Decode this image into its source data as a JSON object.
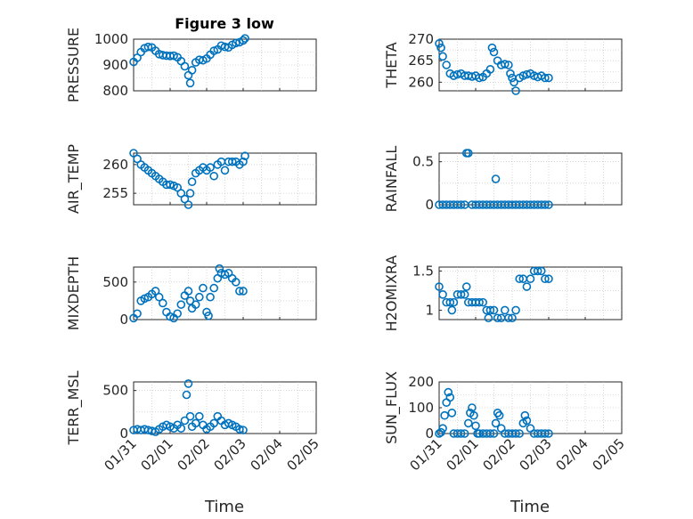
{
  "figure": {
    "title": "Figure 3 low",
    "colors": {
      "marker": "#0072BD",
      "axes": "#262626",
      "grid": "#bdbdbd"
    }
  },
  "chart_data": [
    {
      "id": "pressure",
      "type": "scatter",
      "title": "Figure 3 low",
      "ylabel": "PRESSURE",
      "ylim": [
        800,
        1000
      ],
      "yticks": [
        800,
        900,
        1000
      ],
      "grid": true,
      "xlim": [
        "01/31",
        "02/05"
      ],
      "xticks": [
        "01/31",
        "02/01",
        "02/02",
        "02/03",
        "02/04",
        "02/05"
      ],
      "points": [
        [
          0.0,
          912
        ],
        [
          0.1,
          928
        ],
        [
          0.2,
          950
        ],
        [
          0.3,
          965
        ],
        [
          0.4,
          970
        ],
        [
          0.5,
          968
        ],
        [
          0.6,
          955
        ],
        [
          0.7,
          942
        ],
        [
          0.8,
          938
        ],
        [
          0.9,
          936
        ],
        [
          1.0,
          935
        ],
        [
          1.1,
          936
        ],
        [
          1.2,
          930
        ],
        [
          1.3,
          915
        ],
        [
          1.4,
          895
        ],
        [
          1.5,
          860
        ],
        [
          1.55,
          830
        ],
        [
          1.6,
          880
        ],
        [
          1.7,
          910
        ],
        [
          1.8,
          920
        ],
        [
          1.9,
          918
        ],
        [
          2.0,
          925
        ],
        [
          2.1,
          940
        ],
        [
          2.2,
          955
        ],
        [
          2.3,
          960
        ],
        [
          2.4,
          975
        ],
        [
          2.5,
          970
        ],
        [
          2.6,
          968
        ],
        [
          2.7,
          978
        ],
        [
          2.8,
          985
        ],
        [
          2.9,
          988
        ],
        [
          3.0,
          995
        ],
        [
          3.05,
          1003
        ]
      ]
    },
    {
      "id": "theta",
      "type": "scatter",
      "ylabel": "THETA",
      "ylim": [
        258,
        270
      ],
      "yticks": [
        260,
        265,
        270
      ],
      "grid": true,
      "xlim": [
        "01/31",
        "02/05"
      ],
      "xticks": [
        "01/31",
        "02/01",
        "02/02",
        "02/03",
        "02/04",
        "02/05"
      ],
      "points": [
        [
          0.0,
          269
        ],
        [
          0.05,
          268
        ],
        [
          0.1,
          266
        ],
        [
          0.2,
          264
        ],
        [
          0.3,
          262
        ],
        [
          0.4,
          261.5
        ],
        [
          0.5,
          261.8
        ],
        [
          0.6,
          262
        ],
        [
          0.7,
          261.5
        ],
        [
          0.8,
          261.5
        ],
        [
          0.9,
          261.3
        ],
        [
          1.0,
          261.5
        ],
        [
          1.1,
          261
        ],
        [
          1.2,
          261.2
        ],
        [
          1.3,
          262
        ],
        [
          1.4,
          263
        ],
        [
          1.45,
          268
        ],
        [
          1.5,
          267
        ],
        [
          1.6,
          265
        ],
        [
          1.7,
          264
        ],
        [
          1.8,
          264.2
        ],
        [
          1.9,
          264
        ],
        [
          1.95,
          262
        ],
        [
          2.0,
          261
        ],
        [
          2.05,
          260
        ],
        [
          2.1,
          258
        ],
        [
          2.2,
          261
        ],
        [
          2.3,
          261.5
        ],
        [
          2.4,
          261.8
        ],
        [
          2.5,
          262
        ],
        [
          2.6,
          261.5
        ],
        [
          2.7,
          261.2
        ],
        [
          2.8,
          261.5
        ],
        [
          2.9,
          261
        ],
        [
          3.0,
          261
        ]
      ]
    },
    {
      "id": "air_temp",
      "type": "scatter",
      "ylabel": "AIR_TEMP",
      "ylim": [
        253,
        262
      ],
      "yticks": [
        255,
        260
      ],
      "grid": true,
      "xlim": [
        "01/31",
        "02/05"
      ],
      "xticks": [
        "01/31",
        "02/01",
        "02/02",
        "02/03",
        "02/04",
        "02/05"
      ],
      "points": [
        [
          0.0,
          262
        ],
        [
          0.1,
          261
        ],
        [
          0.2,
          260
        ],
        [
          0.3,
          259.5
        ],
        [
          0.4,
          259
        ],
        [
          0.5,
          258.5
        ],
        [
          0.6,
          258
        ],
        [
          0.7,
          257.5
        ],
        [
          0.8,
          257
        ],
        [
          0.9,
          256.5
        ],
        [
          1.0,
          256.5
        ],
        [
          1.1,
          256.3
        ],
        [
          1.2,
          256
        ],
        [
          1.3,
          255
        ],
        [
          1.4,
          254
        ],
        [
          1.5,
          253
        ],
        [
          1.55,
          255
        ],
        [
          1.6,
          257
        ],
        [
          1.7,
          258.5
        ],
        [
          1.8,
          259
        ],
        [
          1.9,
          259.5
        ],
        [
          2.0,
          259
        ],
        [
          2.1,
          259.5
        ],
        [
          2.2,
          258
        ],
        [
          2.3,
          260
        ],
        [
          2.4,
          260.5
        ],
        [
          2.5,
          259
        ],
        [
          2.6,
          260.5
        ],
        [
          2.7,
          260.5
        ],
        [
          2.8,
          260.5
        ],
        [
          2.9,
          260
        ],
        [
          3.0,
          260.5
        ],
        [
          3.05,
          261.5
        ]
      ]
    },
    {
      "id": "rainfall",
      "type": "scatter",
      "ylabel": "RAINFALL",
      "ylim": [
        0,
        0.6
      ],
      "yticks": [
        0,
        0.5
      ],
      "grid": true,
      "xlim": [
        "01/31",
        "02/05"
      ],
      "xticks": [
        "01/31",
        "02/01",
        "02/02",
        "02/03",
        "02/04",
        "02/05"
      ],
      "points": [
        [
          0.0,
          0
        ],
        [
          0.1,
          0
        ],
        [
          0.2,
          0
        ],
        [
          0.3,
          0
        ],
        [
          0.4,
          0
        ],
        [
          0.5,
          0
        ],
        [
          0.6,
          0
        ],
        [
          0.7,
          0
        ],
        [
          0.75,
          0.6
        ],
        [
          0.8,
          0.6
        ],
        [
          0.9,
          0
        ],
        [
          1.0,
          0
        ],
        [
          1.1,
          0
        ],
        [
          1.2,
          0
        ],
        [
          1.3,
          0
        ],
        [
          1.4,
          0
        ],
        [
          1.5,
          0
        ],
        [
          1.55,
          0.3
        ],
        [
          1.6,
          0
        ],
        [
          1.7,
          0
        ],
        [
          1.8,
          0
        ],
        [
          1.9,
          0
        ],
        [
          2.0,
          0
        ],
        [
          2.1,
          0
        ],
        [
          2.2,
          0
        ],
        [
          2.3,
          0
        ],
        [
          2.4,
          0
        ],
        [
          2.5,
          0
        ],
        [
          2.6,
          0
        ],
        [
          2.7,
          0
        ],
        [
          2.8,
          0
        ],
        [
          2.9,
          0
        ],
        [
          3.0,
          0
        ]
      ]
    },
    {
      "id": "mixdepth",
      "type": "scatter",
      "ylabel": "MIXDEPTH",
      "ylim": [
        0,
        700
      ],
      "yticks": [
        0,
        500
      ],
      "grid": true,
      "xlim": [
        "01/31",
        "02/05"
      ],
      "xticks": [
        "01/31",
        "02/01",
        "02/02",
        "02/03",
        "02/04",
        "02/05"
      ],
      "points": [
        [
          0.0,
          20
        ],
        [
          0.1,
          80
        ],
        [
          0.2,
          250
        ],
        [
          0.3,
          280
        ],
        [
          0.4,
          300
        ],
        [
          0.5,
          340
        ],
        [
          0.6,
          380
        ],
        [
          0.7,
          300
        ],
        [
          0.8,
          220
        ],
        [
          0.9,
          100
        ],
        [
          1.0,
          40
        ],
        [
          1.1,
          20
        ],
        [
          1.2,
          80
        ],
        [
          1.3,
          200
        ],
        [
          1.4,
          320
        ],
        [
          1.5,
          380
        ],
        [
          1.55,
          250
        ],
        [
          1.6,
          150
        ],
        [
          1.7,
          200
        ],
        [
          1.8,
          300
        ],
        [
          1.9,
          420
        ],
        [
          2.0,
          100
        ],
        [
          2.05,
          50
        ],
        [
          2.1,
          300
        ],
        [
          2.2,
          420
        ],
        [
          2.3,
          550
        ],
        [
          2.35,
          680
        ],
        [
          2.4,
          620
        ],
        [
          2.5,
          600
        ],
        [
          2.6,
          620
        ],
        [
          2.7,
          550
        ],
        [
          2.8,
          500
        ],
        [
          2.9,
          380
        ],
        [
          3.0,
          380
        ]
      ]
    },
    {
      "id": "h2omixra",
      "type": "scatter",
      "ylabel": "H2OMIXRA",
      "ylim": [
        0.88,
        1.55
      ],
      "yticks": [
        1,
        1.5
      ],
      "grid": true,
      "xlim": [
        "01/31",
        "02/05"
      ],
      "xticks": [
        "01/31",
        "02/01",
        "02/02",
        "02/03",
        "02/04",
        "02/05"
      ],
      "points": [
        [
          0.0,
          1.3
        ],
        [
          0.1,
          1.2
        ],
        [
          0.2,
          1.1
        ],
        [
          0.3,
          1.1
        ],
        [
          0.35,
          1.0
        ],
        [
          0.4,
          1.1
        ],
        [
          0.5,
          1.2
        ],
        [
          0.6,
          1.2
        ],
        [
          0.7,
          1.2
        ],
        [
          0.75,
          1.3
        ],
        [
          0.8,
          1.1
        ],
        [
          0.9,
          1.1
        ],
        [
          1.0,
          1.1
        ],
        [
          1.1,
          1.1
        ],
        [
          1.2,
          1.1
        ],
        [
          1.3,
          1.0
        ],
        [
          1.35,
          0.9
        ],
        [
          1.4,
          1.0
        ],
        [
          1.5,
          1.0
        ],
        [
          1.6,
          0.9
        ],
        [
          1.7,
          0.9
        ],
        [
          1.8,
          1.0
        ],
        [
          1.9,
          0.9
        ],
        [
          2.0,
          0.9
        ],
        [
          2.1,
          1.0
        ],
        [
          2.2,
          1.4
        ],
        [
          2.3,
          1.4
        ],
        [
          2.4,
          1.3
        ],
        [
          2.5,
          1.4
        ],
        [
          2.6,
          1.5
        ],
        [
          2.7,
          1.5
        ],
        [
          2.8,
          1.5
        ],
        [
          2.9,
          1.4
        ],
        [
          3.0,
          1.4
        ]
      ]
    },
    {
      "id": "terr_msl",
      "type": "scatter",
      "ylabel": "TERR_MSL",
      "ylim": [
        0,
        600
      ],
      "yticks": [
        0,
        500
      ],
      "grid": true,
      "xlim": [
        "01/31",
        "02/05"
      ],
      "xticks": [
        "01/31",
        "02/01",
        "02/02",
        "02/03",
        "02/04",
        "02/05"
      ],
      "points": [
        [
          0.0,
          40
        ],
        [
          0.1,
          50
        ],
        [
          0.2,
          40
        ],
        [
          0.3,
          50
        ],
        [
          0.4,
          40
        ],
        [
          0.5,
          30
        ],
        [
          0.6,
          20
        ],
        [
          0.7,
          50
        ],
        [
          0.8,
          80
        ],
        [
          0.9,
          100
        ],
        [
          1.0,
          80
        ],
        [
          1.1,
          60
        ],
        [
          1.2,
          100
        ],
        [
          1.3,
          60
        ],
        [
          1.4,
          150
        ],
        [
          1.45,
          450
        ],
        [
          1.5,
          580
        ],
        [
          1.55,
          200
        ],
        [
          1.6,
          80
        ],
        [
          1.7,
          120
        ],
        [
          1.8,
          200
        ],
        [
          1.9,
          100
        ],
        [
          2.0,
          50
        ],
        [
          2.1,
          80
        ],
        [
          2.2,
          120
        ],
        [
          2.3,
          200
        ],
        [
          2.4,
          150
        ],
        [
          2.5,
          100
        ],
        [
          2.6,
          120
        ],
        [
          2.7,
          100
        ],
        [
          2.8,
          80
        ],
        [
          2.9,
          50
        ],
        [
          3.0,
          40
        ]
      ]
    },
    {
      "id": "sun_flux",
      "type": "scatter",
      "ylabel": "SUN_FLUX",
      "ylim": [
        0,
        200
      ],
      "yticks": [
        0,
        100,
        200
      ],
      "grid": true,
      "xlim": [
        "01/31",
        "02/05"
      ],
      "xticks": [
        "01/31",
        "02/01",
        "02/02",
        "02/03",
        "02/04",
        "02/05"
      ],
      "points": [
        [
          0.0,
          0
        ],
        [
          0.05,
          5
        ],
        [
          0.1,
          20
        ],
        [
          0.15,
          70
        ],
        [
          0.2,
          120
        ],
        [
          0.25,
          160
        ],
        [
          0.3,
          140
        ],
        [
          0.35,
          80
        ],
        [
          0.4,
          0
        ],
        [
          0.5,
          0
        ],
        [
          0.6,
          0
        ],
        [
          0.7,
          0
        ],
        [
          0.8,
          40
        ],
        [
          0.85,
          80
        ],
        [
          0.9,
          100
        ],
        [
          0.95,
          70
        ],
        [
          1.0,
          30
        ],
        [
          1.05,
          0
        ],
        [
          1.1,
          0
        ],
        [
          1.2,
          0
        ],
        [
          1.3,
          0
        ],
        [
          1.4,
          0
        ],
        [
          1.5,
          0
        ],
        [
          1.55,
          40
        ],
        [
          1.6,
          80
        ],
        [
          1.65,
          70
        ],
        [
          1.7,
          20
        ],
        [
          1.8,
          0
        ],
        [
          1.9,
          0
        ],
        [
          2.0,
          0
        ],
        [
          2.1,
          0
        ],
        [
          2.2,
          0
        ],
        [
          2.3,
          40
        ],
        [
          2.35,
          70
        ],
        [
          2.4,
          50
        ],
        [
          2.5,
          20
        ],
        [
          2.6,
          0
        ],
        [
          2.7,
          0
        ],
        [
          2.8,
          0
        ],
        [
          2.9,
          0
        ],
        [
          3.0,
          0
        ]
      ]
    }
  ],
  "xlabels": [
    "Time",
    "Time"
  ]
}
